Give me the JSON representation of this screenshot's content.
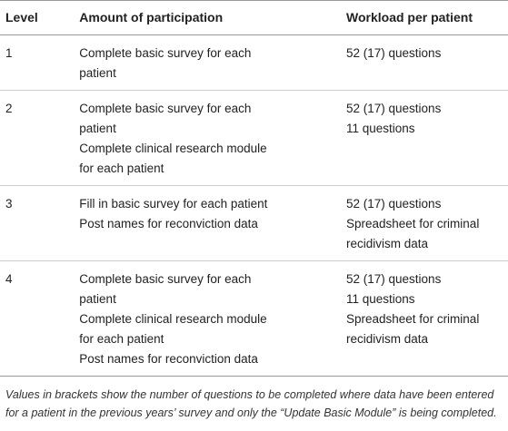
{
  "table": {
    "header": [
      "Level",
      "Amount of participation",
      "Workload per patient"
    ],
    "rows": [
      {
        "level": "1",
        "participation": [
          "Complete basic survey for each patient"
        ],
        "workload": [
          "52 (17) questions"
        ]
      },
      {
        "level": "2",
        "participation": [
          "Complete basic survey for each patient",
          "Complete clinical research module for each patient"
        ],
        "workload": [
          "52 (17) questions",
          "11 questions"
        ]
      },
      {
        "level": "3",
        "participation": [
          "Fill in basic survey for each patient",
          "Post names for reconviction data"
        ],
        "workload": [
          "52 (17) questions",
          "Spreadsheet for criminal recidivism data"
        ]
      },
      {
        "level": "4",
        "participation": [
          "Complete basic survey for each patient",
          "Complete clinical research module for each patient",
          "Post names for reconviction data"
        ],
        "workload": [
          "52 (17) questions",
          "11 questions",
          "Spreadsheet for criminal recidivism data"
        ]
      }
    ],
    "footnote": "Values in brackets show the number of questions to be completed where data have been entered for a patient in the previous years’ survey and only the “Update Basic Module” is being completed."
  }
}
